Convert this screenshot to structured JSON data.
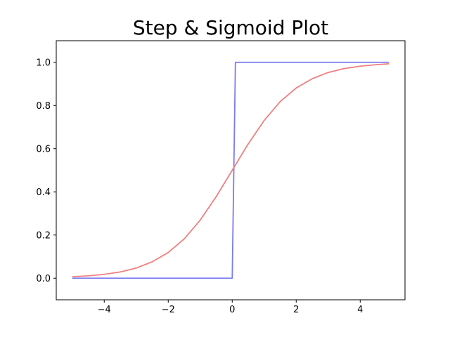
{
  "chart_data": {
    "type": "line",
    "title": "Step & Sigmoid Plot",
    "xlabel": "",
    "ylabel": "",
    "xlim": [
      -5.5,
      5.4
    ],
    "ylim": [
      -0.1,
      1.1
    ],
    "grid": false,
    "x_ticks": [
      -4,
      -2,
      0,
      2,
      4
    ],
    "x_tick_labels": [
      "−4",
      "−2",
      "0",
      "2",
      "4"
    ],
    "y_ticks": [
      0.0,
      0.2,
      0.4,
      0.6,
      0.8,
      1.0
    ],
    "y_tick_labels": [
      "0.0",
      "0.2",
      "0.4",
      "0.6",
      "0.8",
      "1.0"
    ],
    "series": [
      {
        "color": "#7b7bf0",
        "x": [
          -5.0,
          -4.0,
          -3.0,
          -2.0,
          -1.0,
          0.0,
          0.1,
          1.0,
          2.0,
          3.0,
          4.0,
          4.9
        ],
        "values": [
          0,
          0,
          0,
          0,
          0,
          0,
          1,
          1,
          1,
          1,
          1,
          1
        ]
      },
      {
        "color": "#f08080",
        "x": [
          -5.0,
          -4.5,
          -4.0,
          -3.5,
          -3.0,
          -2.5,
          -2.0,
          -1.5,
          -1.0,
          -0.5,
          0.0,
          0.5,
          1.0,
          1.5,
          2.0,
          2.5,
          3.0,
          3.5,
          4.0,
          4.5,
          4.9
        ],
        "values": [
          0.007,
          0.011,
          0.018,
          0.029,
          0.047,
          0.076,
          0.119,
          0.182,
          0.269,
          0.378,
          0.5,
          0.622,
          0.731,
          0.818,
          0.881,
          0.924,
          0.953,
          0.971,
          0.982,
          0.989,
          0.993
        ]
      }
    ]
  }
}
